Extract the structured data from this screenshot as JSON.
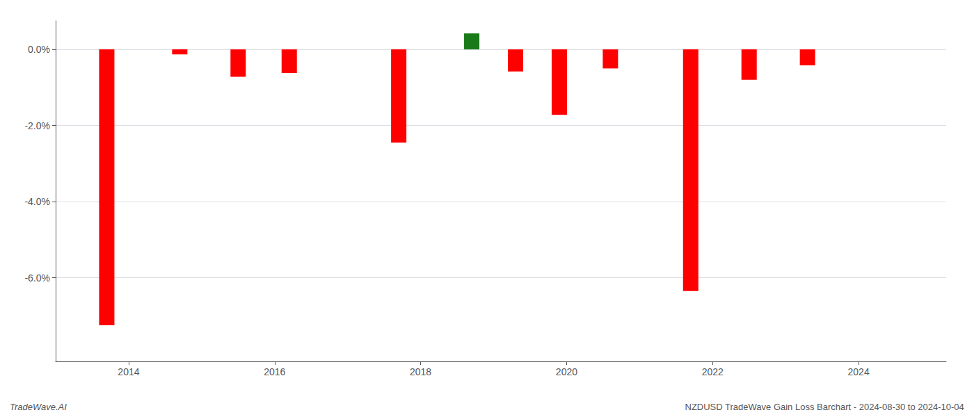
{
  "chart_data": {
    "type": "bar",
    "x": [
      2013.7,
      2014.7,
      2015.5,
      2016.2,
      2017.7,
      2018.7,
      2019.3,
      2019.9,
      2020.6,
      2021.7,
      2022.5,
      2023.3
    ],
    "values": [
      -7.25,
      -0.13,
      -0.72,
      -0.62,
      -2.45,
      0.42,
      -0.58,
      -1.72,
      -0.5,
      -6.35,
      -0.8,
      -0.42
    ],
    "colors": [
      "#ff0000",
      "#ff0000",
      "#ff0000",
      "#ff0000",
      "#ff0000",
      "#1a7a1a",
      "#ff0000",
      "#ff0000",
      "#ff0000",
      "#ff0000",
      "#ff0000",
      "#ff0000"
    ],
    "xlim": [
      2013.0,
      2025.2
    ],
    "xticks": [
      2014,
      2016,
      2018,
      2020,
      2022,
      2024
    ],
    "ylim": [
      -8.2,
      0.75
    ],
    "yticks": [
      {
        "value": 0.0,
        "label": "0.0%"
      },
      {
        "value": -2.0,
        "label": "-2.0%"
      },
      {
        "value": -4.0,
        "label": "-4.0%"
      },
      {
        "value": -6.0,
        "label": "-6.0%"
      }
    ],
    "grid": true,
    "annotations": [
      "TradeWave.AI",
      "NZDUSD TradeWave Gain Loss Barchart - 2024-08-30 to 2024-10-04"
    ]
  }
}
